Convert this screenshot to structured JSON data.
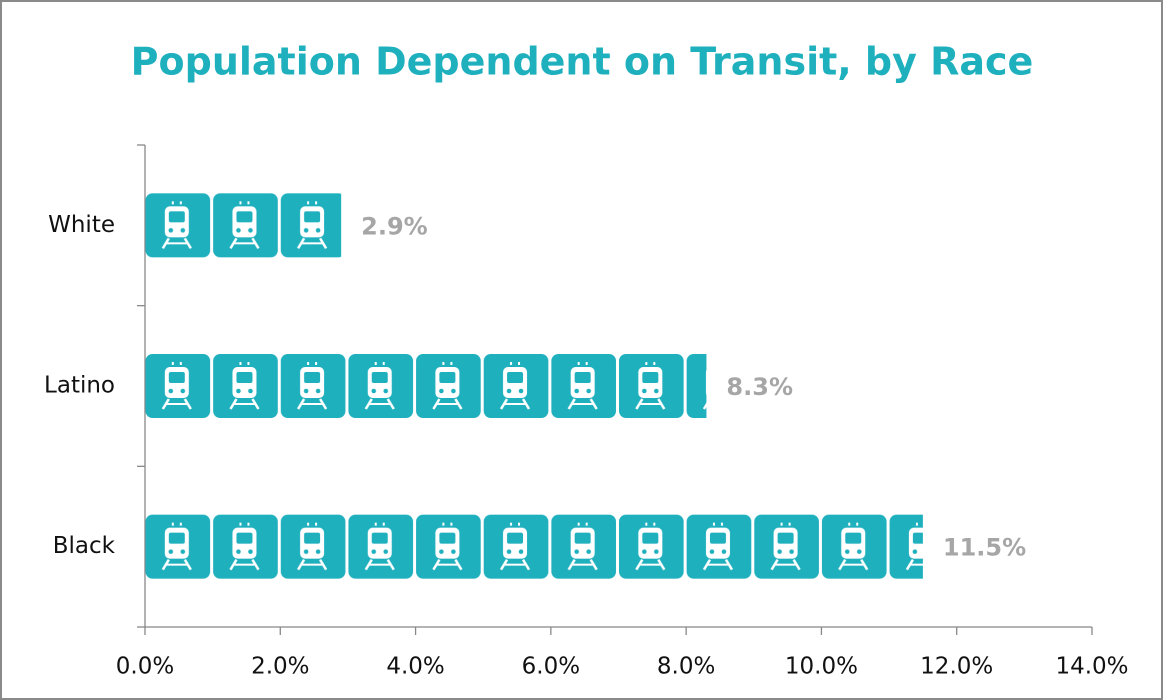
{
  "chart_data": {
    "type": "bar",
    "orientation": "horizontal",
    "title": "Population Dependent on Transit, by Race",
    "categories": [
      "White",
      "Latino",
      "Black"
    ],
    "values": [
      2.9,
      8.3,
      11.5
    ],
    "value_labels": [
      "2.9%",
      "8.3%",
      "11.5%"
    ],
    "color": "#1fb0be",
    "xlim": [
      0,
      14
    ],
    "xticks": [
      {
        "value": 0,
        "label": "0.0%"
      },
      {
        "value": 2,
        "label": "2.0%"
      },
      {
        "value": 4,
        "label": "4.0%"
      },
      {
        "value": 6,
        "label": "6.0%"
      },
      {
        "value": 8,
        "label": "8.0%"
      },
      {
        "value": 10,
        "label": "10.0%"
      },
      {
        "value": 12,
        "label": "12.0%"
      },
      {
        "value": 14,
        "label": "14.0%"
      }
    ],
    "grid": false
  }
}
